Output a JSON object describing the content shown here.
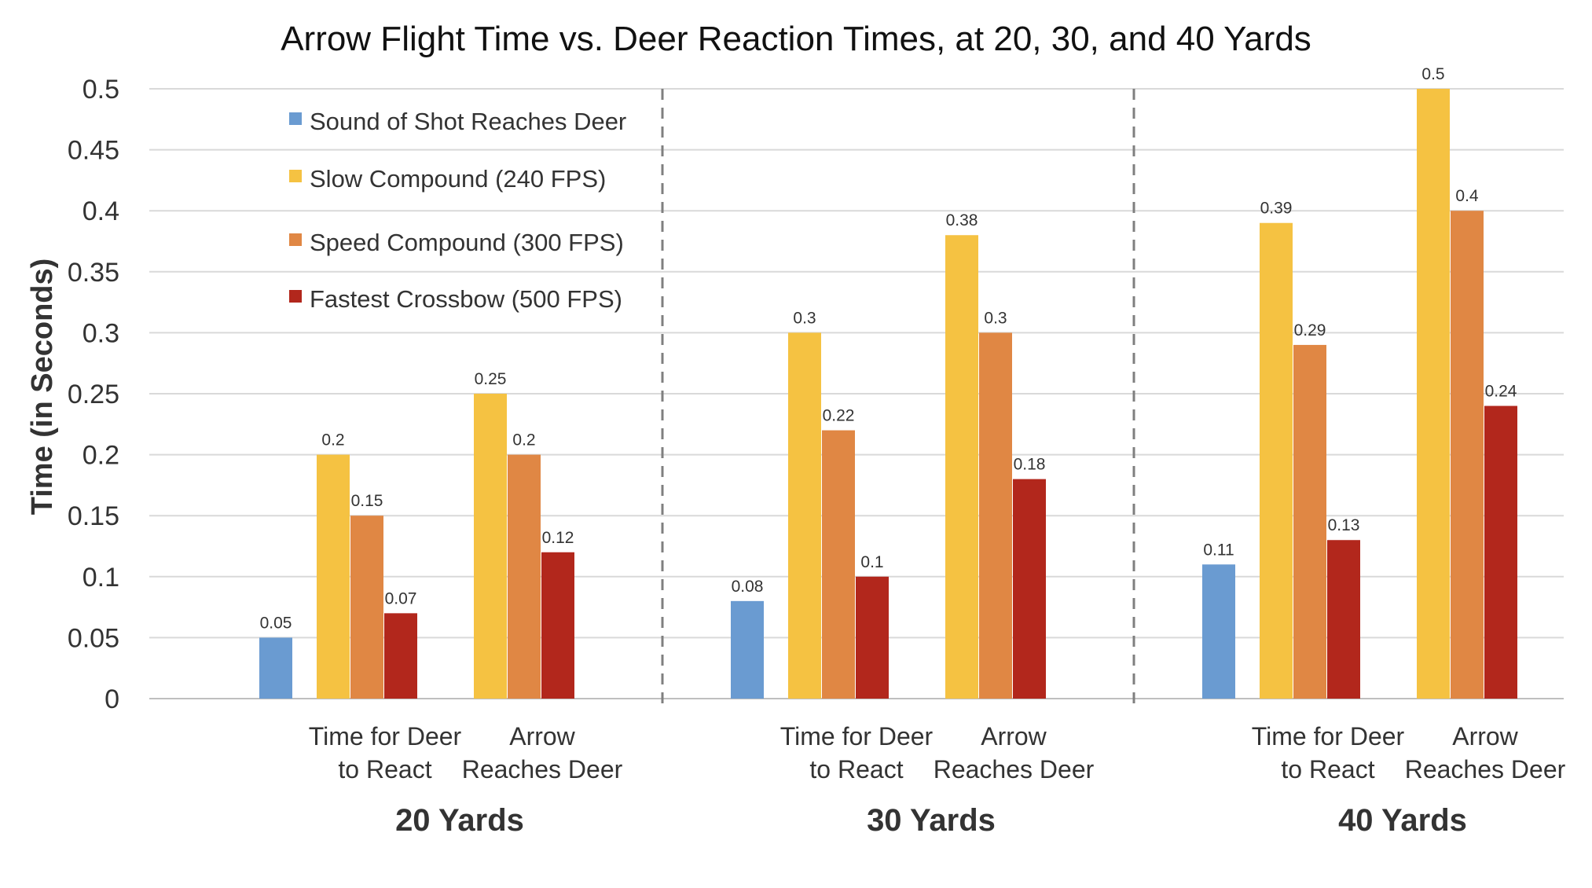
{
  "chart_data": {
    "type": "bar",
    "title": "Arrow Flight Time vs. Deer Reaction Times, at 20, 30, and 40 Yards",
    "ylabel": "Time (in Seconds)",
    "ylim": [
      0,
      0.5
    ],
    "yticks": [
      "0",
      "0.05",
      "0.1",
      "0.15",
      "0.2",
      "0.25",
      "0.3",
      "0.35",
      "0.4",
      "0.45",
      "0.5"
    ],
    "grid": true,
    "legend_position": "top-left",
    "groups": [
      {
        "label": "20 Yards",
        "categories": [
          {
            "label_lines": [
              "Time for Deer",
              "to React"
            ],
            "bars": [
              {
                "series": 0,
                "value": 0.05,
                "label": "0.05"
              },
              {
                "series": 1,
                "value": 0.2,
                "label": "0.2"
              },
              {
                "series": 2,
                "value": 0.15,
                "label": "0.15"
              },
              {
                "series": 3,
                "value": 0.07,
                "label": "0.07"
              }
            ]
          },
          {
            "label_lines": [
              "Arrow",
              "Reaches Deer"
            ],
            "bars": [
              {
                "series": 1,
                "value": 0.25,
                "label": "0.25"
              },
              {
                "series": 2,
                "value": 0.2,
                "label": "0.2"
              },
              {
                "series": 3,
                "value": 0.12,
                "label": "0.12"
              }
            ]
          }
        ]
      },
      {
        "label": "30 Yards",
        "categories": [
          {
            "label_lines": [
              "Time for Deer",
              "to React"
            ],
            "bars": [
              {
                "series": 0,
                "value": 0.08,
                "label": "0.08"
              },
              {
                "series": 1,
                "value": 0.3,
                "label": "0.3"
              },
              {
                "series": 2,
                "value": 0.22,
                "label": "0.22"
              },
              {
                "series": 3,
                "value": 0.1,
                "label": "0.1"
              }
            ]
          },
          {
            "label_lines": [
              "Arrow",
              "Reaches Deer"
            ],
            "bars": [
              {
                "series": 1,
                "value": 0.38,
                "label": "0.38"
              },
              {
                "series": 2,
                "value": 0.3,
                "label": "0.3"
              },
              {
                "series": 3,
                "value": 0.18,
                "label": "0.18"
              }
            ]
          }
        ]
      },
      {
        "label": "40 Yards",
        "categories": [
          {
            "label_lines": [
              "Time for Deer",
              "to React"
            ],
            "bars": [
              {
                "series": 0,
                "value": 0.11,
                "label": "0.11"
              },
              {
                "series": 1,
                "value": 0.39,
                "label": "0.39"
              },
              {
                "series": 2,
                "value": 0.29,
                "label": "0.29"
              },
              {
                "series": 3,
                "value": 0.13,
                "label": "0.13"
              }
            ]
          },
          {
            "label_lines": [
              "Arrow",
              "Reaches Deer"
            ],
            "bars": [
              {
                "series": 1,
                "value": 0.5,
                "label": "0.5"
              },
              {
                "series": 2,
                "value": 0.4,
                "label": "0.4"
              },
              {
                "series": 3,
                "value": 0.24,
                "label": "0.24"
              }
            ]
          }
        ]
      }
    ],
    "series": [
      {
        "name": "Sound of Shot Reaches Deer",
        "color": "#6a9bd1"
      },
      {
        "name": "Slow Compound (240 FPS)",
        "color": "#f5c242"
      },
      {
        "name": "Speed Compound (300 FPS)",
        "color": "#e08744"
      },
      {
        "name": "Fastest Crossbow (500 FPS)",
        "color": "#b2271c"
      }
    ]
  }
}
